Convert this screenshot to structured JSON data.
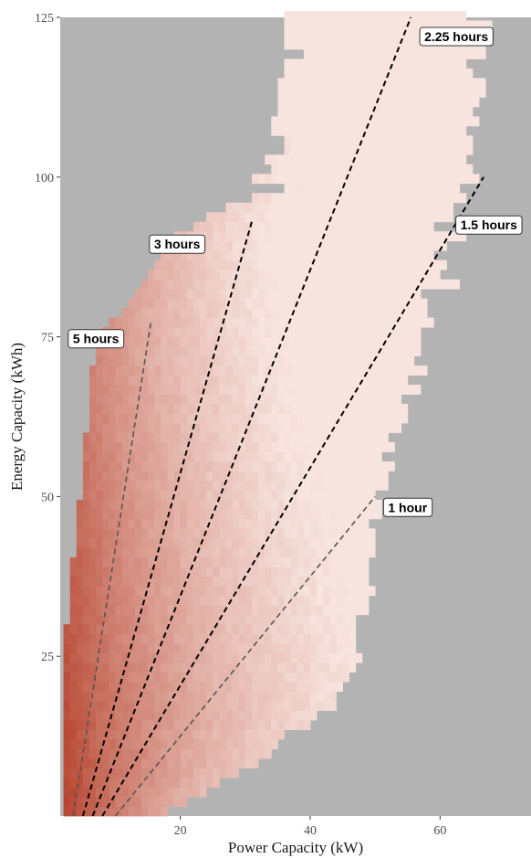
{
  "chart_data": {
    "type": "heatmap",
    "title": "",
    "xlabel": "Power Capacity (kW)",
    "ylabel": "Energy Capacity (kWh)",
    "xlim": [
      1.5,
      74
    ],
    "ylim": [
      0,
      125
    ],
    "x_ticks": [
      20,
      40,
      60
    ],
    "y_ticks": [
      25,
      50,
      75,
      100,
      125
    ],
    "grid": false,
    "colors": {
      "panel_background": "#b3b3b3",
      "low_density": "#f7e4df",
      "high_density": "#b5412c",
      "duration_line_dark": "#000000",
      "duration_line_grey": "#555555"
    },
    "feasible_region": {
      "description_units": "kW range of the shaded region at each energy level (kWh)",
      "rows": [
        {
          "energy_kwh": 0,
          "power_min_kw": 2,
          "power_max_kw": 17
        },
        {
          "energy_kwh": 5,
          "power_min_kw": 2,
          "power_max_kw": 25
        },
        {
          "energy_kwh": 10,
          "power_min_kw": 2,
          "power_max_kw": 33
        },
        {
          "energy_kwh": 15,
          "power_min_kw": 2,
          "power_max_kw": 40
        },
        {
          "energy_kwh": 20,
          "power_min_kw": 2,
          "power_max_kw": 44
        },
        {
          "energy_kwh": 25,
          "power_min_kw": 2,
          "power_max_kw": 47
        },
        {
          "energy_kwh": 30,
          "power_min_kw": 3,
          "power_max_kw": 48
        },
        {
          "energy_kwh": 40,
          "power_min_kw": 4,
          "power_max_kw": 49
        },
        {
          "energy_kwh": 50,
          "power_min_kw": 5,
          "power_max_kw": 50
        },
        {
          "energy_kwh": 60,
          "power_min_kw": 6,
          "power_max_kw": 53
        },
        {
          "energy_kwh": 70,
          "power_min_kw": 7,
          "power_max_kw": 56
        },
        {
          "energy_kwh": 75,
          "power_min_kw": 8,
          "power_max_kw": 57
        },
        {
          "energy_kwh": 80,
          "power_min_kw": 12,
          "power_max_kw": 59
        },
        {
          "energy_kwh": 85,
          "power_min_kw": 16,
          "power_max_kw": 60
        },
        {
          "energy_kwh": 90,
          "power_min_kw": 18,
          "power_max_kw": 61
        },
        {
          "energy_kwh": 95,
          "power_min_kw": 27,
          "power_max_kw": 62
        },
        {
          "energy_kwh": 100,
          "power_min_kw": 32,
          "power_max_kw": 63
        },
        {
          "energy_kwh": 105,
          "power_min_kw": 34,
          "power_max_kw": 63
        },
        {
          "energy_kwh": 110,
          "power_min_kw": 35,
          "power_max_kw": 64
        },
        {
          "energy_kwh": 115,
          "power_min_kw": 36,
          "power_max_kw": 64
        },
        {
          "energy_kwh": 120,
          "power_min_kw": 36,
          "power_max_kw": 65
        },
        {
          "energy_kwh": 125,
          "power_min_kw": 36,
          "power_max_kw": 65
        }
      ]
    },
    "duration_lines": [
      {
        "label": "5 hours",
        "hours": 5,
        "x_end": 15.5,
        "y_end": 77.5,
        "style": "grey"
      },
      {
        "label": "3 hours",
        "hours": 3,
        "x_end": 31,
        "y_end": 93,
        "style": "dark"
      },
      {
        "label": "2.25 hours",
        "hours": 2.25,
        "x_end": 55.5,
        "y_end": 125,
        "style": "dark"
      },
      {
        "label": "1.5 hours",
        "hours": 1.5,
        "x_end": 66.7,
        "y_end": 100,
        "style": "dark"
      },
      {
        "label": "1 hour",
        "hours": 1,
        "x_end": 50,
        "y_end": 50,
        "style": "grey"
      }
    ],
    "annotations": [
      {
        "text": "2.25 hours",
        "x": 62.5,
        "y": 122
      },
      {
        "text": "1.5 hours",
        "x": 67.5,
        "y": 92.5
      },
      {
        "text": "3 hours",
        "x": 19.5,
        "y": 89.5
      },
      {
        "text": "5 hours",
        "x": 7,
        "y": 74.7
      },
      {
        "text": "1 hour",
        "x": 55,
        "y": 48.3
      }
    ]
  }
}
